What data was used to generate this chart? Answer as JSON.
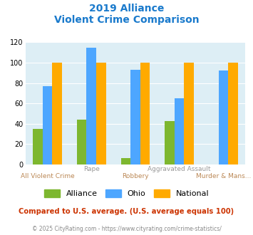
{
  "title_line1": "2019 Alliance",
  "title_line2": "Violent Crime Comparison",
  "x_top_labels": [
    "",
    "Rape",
    "",
    "Aggravated Assault",
    ""
  ],
  "x_bottom_labels": [
    "All Violent Crime",
    "",
    "Robbery",
    "",
    "Murder & Mans..."
  ],
  "alliance": [
    35,
    44,
    6,
    43,
    0
  ],
  "ohio": [
    77,
    115,
    93,
    65,
    92
  ],
  "national": [
    100,
    100,
    100,
    100,
    100
  ],
  "bar_colors": {
    "alliance": "#7db72f",
    "ohio": "#4da6ff",
    "national": "#ffaa00"
  },
  "ylim": [
    0,
    120
  ],
  "yticks": [
    0,
    20,
    40,
    60,
    80,
    100,
    120
  ],
  "bg_color": "#ddeef5",
  "title_color": "#1a7acc",
  "xlabel_top_color": "#999999",
  "xlabel_bot_color": "#bb8855",
  "footer_note": "Compared to U.S. average. (U.S. average equals 100)",
  "footer_copyright": "© 2025 CityRating.com - https://www.cityrating.com/crime-statistics/",
  "footer_note_color": "#cc3300",
  "footer_copy_color": "#888888",
  "legend_labels": [
    "Alliance",
    "Ohio",
    "National"
  ]
}
